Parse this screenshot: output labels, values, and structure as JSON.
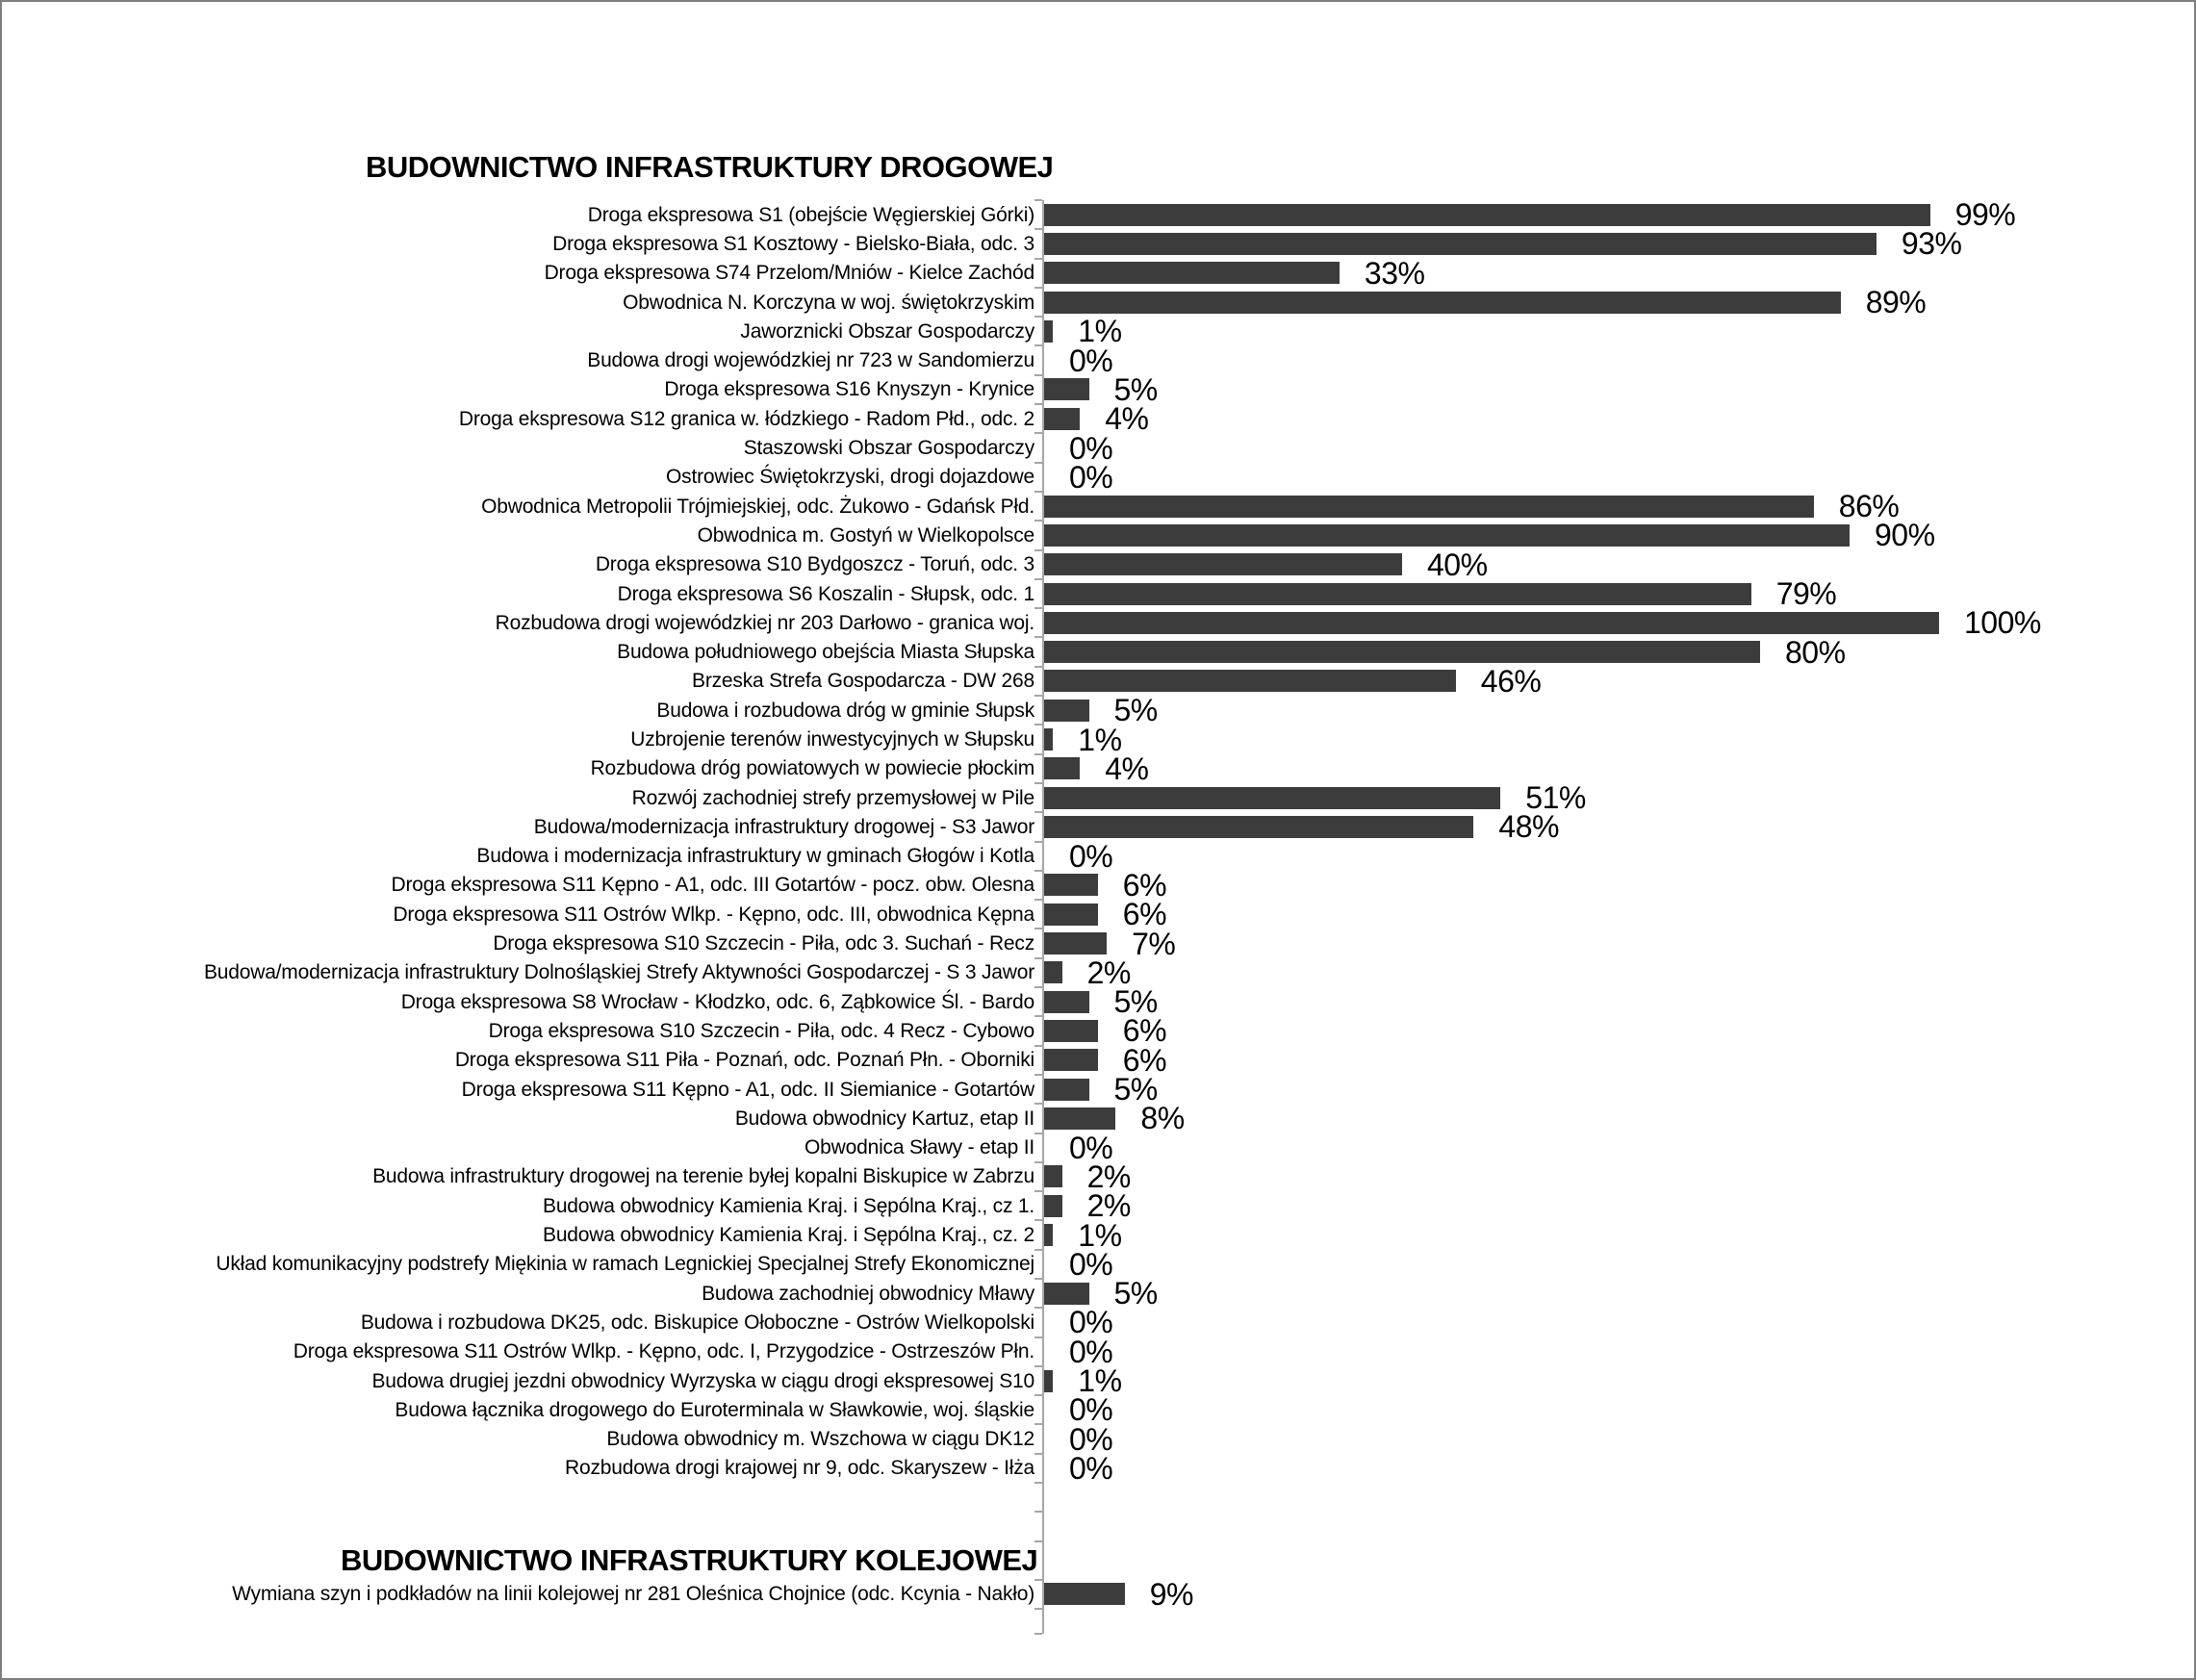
{
  "page": {
    "background": "#ffffff",
    "border_color": "#7f7f7f"
  },
  "chart_data": {
    "type": "bar",
    "orientation": "horizontal",
    "unit": "%",
    "value_format": "{value}%",
    "xlim": [
      0,
      100
    ],
    "grid": false,
    "legend": "none",
    "bar_color": "#3c3c3c",
    "axis_color": "#a6a6a6",
    "series": [
      {
        "name": "BUDOWNICTWO INFRASTRUKTURY DROGOWEJ",
        "categories": [
          "Droga ekspresowa S1 (obejście Węgierskiej Górki)",
          "Droga ekspresowa S1 Kosztowy - Bielsko-Biała, odc. 3",
          "Droga ekspresowa S74 Przelom/Mniów - Kielce Zachód",
          "Obwodnica N. Korczyna w woj. świętokrzyskim",
          "Jaworznicki Obszar Gospodarczy",
          "Budowa drogi wojewódzkiej nr 723 w Sandomierzu",
          "Droga ekspresowa S16 Knyszyn - Krynice",
          "Droga ekspresowa S12 granica w. łódzkiego - Radom Płd., odc. 2",
          "Staszowski Obszar Gospodarczy",
          "Ostrowiec Świętokrzyski, drogi dojazdowe",
          "Obwodnica Metropolii Trójmiejskiej, odc. Żukowo - Gdańsk Płd.",
          "Obwodnica m. Gostyń w Wielkopolsce",
          "Droga ekspresowa S10 Bydgoszcz - Toruń, odc. 3",
          "Droga ekspresowa S6 Koszalin - Słupsk, odc. 1",
          "Rozbudowa drogi wojewódzkiej nr 203 Darłowo - granica woj.",
          "Budowa południowego obejścia Miasta Słupska",
          "Brzeska Strefa Gospodarcza - DW 268",
          "Budowa i rozbudowa dróg w gminie Słupsk",
          "Uzbrojenie terenów inwestycyjnych w Słupsku",
          "Rozbudowa dróg powiatowych w powiecie płockim",
          "Rozwój zachodniej strefy przemysłowej w Pile",
          "Budowa/modernizacja infrastruktury drogowej - S3 Jawor",
          "Budowa i modernizacja infrastruktury w gminach Głogów i Kotla",
          "Droga ekspresowa S11 Kępno - A1, odc. III Gotartów - pocz. obw. Olesna",
          "Droga ekspresowa S11 Ostrów Wlkp. - Kępno, odc. III, obwodnica Kępna",
          "Droga ekspresowa S10 Szczecin - Piła, odc 3. Suchań - Recz",
          "Budowa/modernizacja infrastruktury Dolnośląskiej Strefy Aktywności Gospodarczej - S 3 Jawor",
          "Droga ekspresowa S8 Wrocław - Kłodzko, odc. 6, Ząbkowice Śl. - Bardo",
          "Droga ekspresowa S10 Szczecin - Piła, odc. 4 Recz - Cybowo",
          "Droga ekspresowa S11 Piła - Poznań, odc. Poznań Płn. - Oborniki",
          "Droga ekspresowa S11 Kępno - A1, odc. II Siemianice - Gotartów",
          "Budowa obwodnicy Kartuz, etap II",
          "Obwodnica Sławy - etap II",
          "Budowa infrastruktury drogowej na terenie byłej kopalni Biskupice w Zabrzu",
          "Budowa obwodnicy Kamienia Kraj. i Sępólna Kraj., cz 1.",
          "Budowa obwodnicy Kamienia Kraj. i Sępólna Kraj., cz. 2",
          "Układ komunikacyjny podstrefy Miękinia w ramach Legnickiej Specjalnej Strefy Ekonomicznej",
          "Budowa zachodniej obwodnicy Mławy",
          "Budowa i rozbudowa DK25, odc. Biskupice Ołoboczne - Ostrów Wielkopolski",
          "Droga ekspresowa S11 Ostrów Wlkp. - Kępno, odc. I, Przygodzice - Ostrzeszów Płn.",
          "Budowa drugiej jezdni obwodnicy Wyrzyska w ciągu drogi ekspresowej S10",
          "Budowa łącznika drogowego do Euroterminala w Sławkowie, woj. śląskie",
          "Budowa obwodnicy m. Wszchowa w ciągu DK12",
          "Rozbudowa drogi krajowej nr 9, odc. Skaryszew - Iłża"
        ],
        "values": [
          99,
          93,
          33,
          89,
          1,
          0,
          5,
          4,
          0,
          0,
          86,
          90,
          40,
          79,
          100,
          80,
          46,
          5,
          1,
          4,
          51,
          48,
          0,
          6,
          6,
          7,
          2,
          5,
          6,
          6,
          5,
          8,
          0,
          2,
          2,
          1,
          0,
          5,
          0,
          0,
          1,
          0,
          0,
          0
        ]
      },
      {
        "name": "BUDOWNICTWO INFRASTRUKTURY KOLEJOWEJ",
        "categories": [
          "Wymiana szyn i podkładów na linii kolejowej nr 281 Oleśnica Chojnice (odc. Kcynia - Nakło)"
        ],
        "values": [
          9
        ]
      }
    ]
  }
}
